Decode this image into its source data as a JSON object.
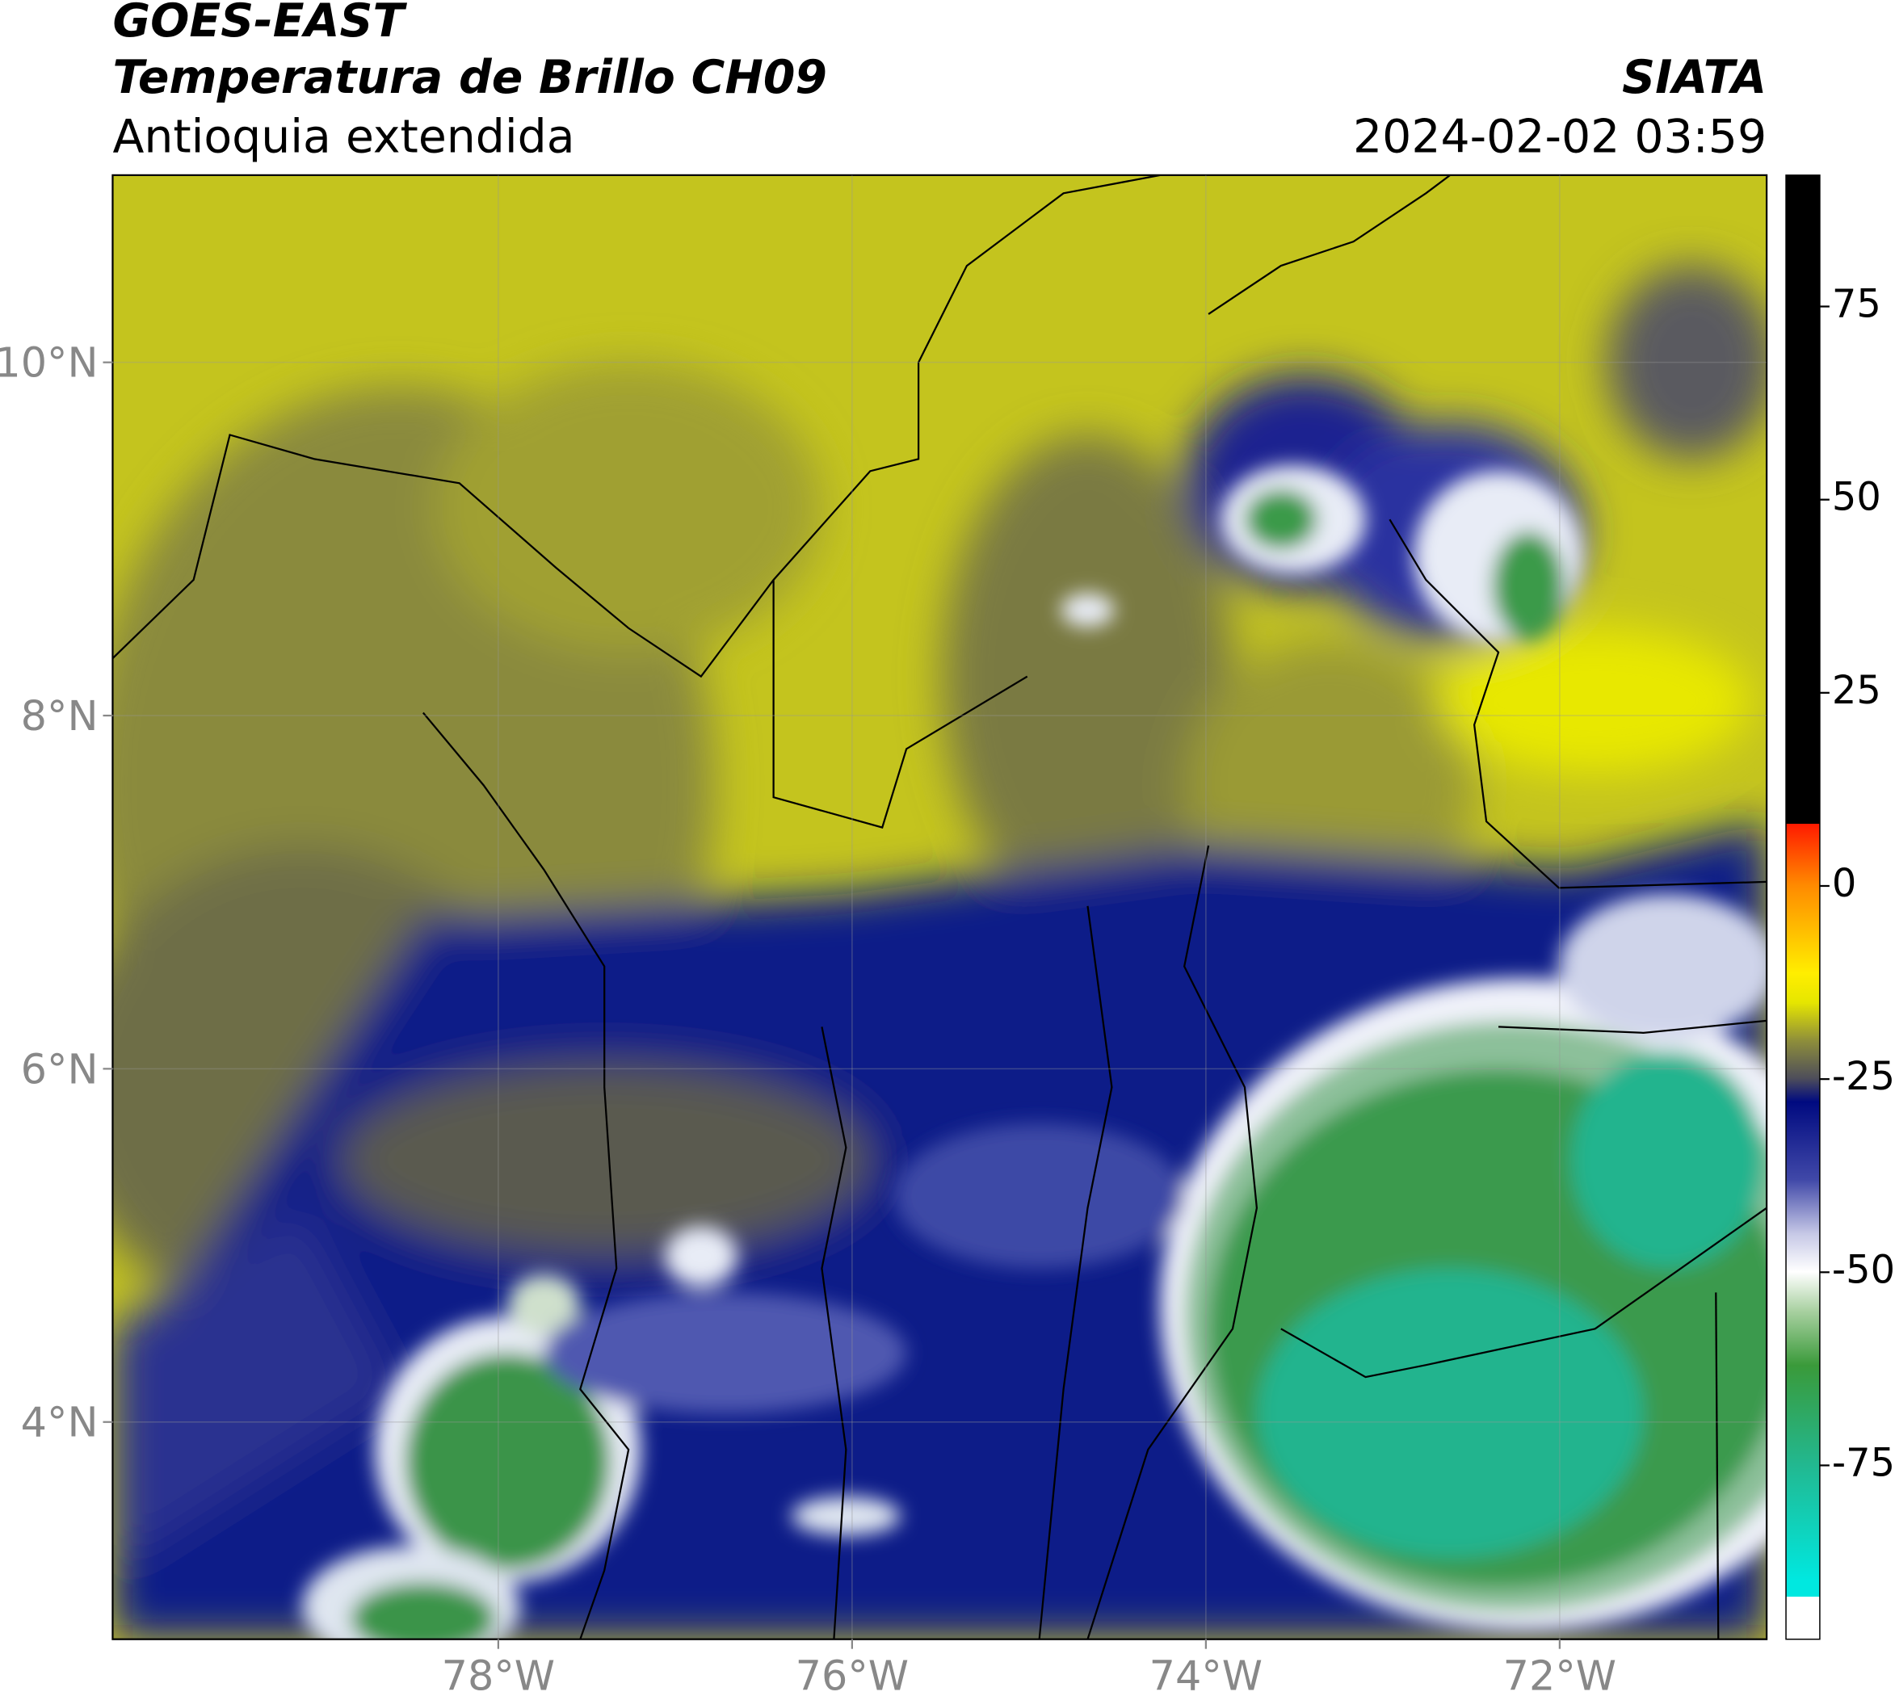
{
  "header": {
    "title": "GOES-EAST",
    "subtitle": "Temperatura de Brillo CH09",
    "region": "Antioquia extendida",
    "source": "SIATA",
    "datetime": "2024-02-02 03:59"
  },
  "map": {
    "xlim": [
      -80.18,
      -70.83
    ],
    "ylim": [
      2.77,
      11.06
    ],
    "xticks": [
      {
        "value": -78,
        "label": "78°W"
      },
      {
        "value": -76,
        "label": "76°W"
      },
      {
        "value": -74,
        "label": "74°W"
      },
      {
        "value": -72,
        "label": "72°W"
      }
    ],
    "yticks": [
      {
        "value": 10,
        "label": "10°N"
      },
      {
        "value": 8,
        "label": "8°N"
      },
      {
        "value": 6,
        "label": "6°N"
      },
      {
        "value": 4,
        "label": "4°N"
      }
    ]
  },
  "colorbar": {
    "lim": [
      -97.5,
      92
    ],
    "ticks": [
      75,
      50,
      25,
      0,
      -25,
      -50,
      -75
    ]
  }
}
